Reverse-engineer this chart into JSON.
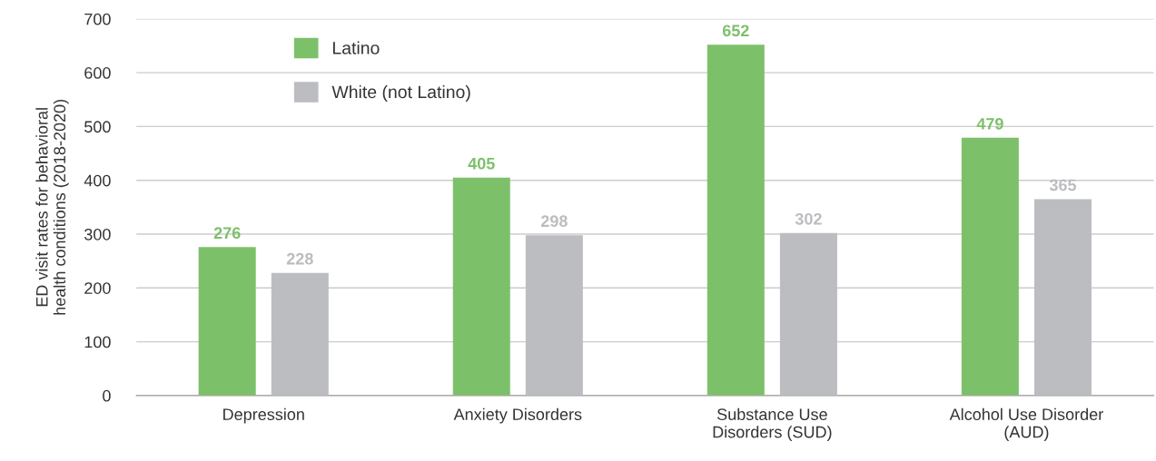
{
  "chart_data": {
    "type": "bar",
    "ylabel": "ED visit rates for behavioral\nhealth conditions (2018-2020)",
    "categories": [
      "Depression",
      "Anxiety Disorders",
      "Substance Use\nDisorders (SUD)",
      "Alcohol Use Disorder\n(AUD)"
    ],
    "series": [
      {
        "name": "Latino",
        "color": "#7dc06a",
        "values": [
          276,
          405,
          652,
          479
        ]
      },
      {
        "name": "White (not Latino)",
        "color": "#bcbdc0",
        "values": [
          228,
          298,
          302,
          365
        ]
      }
    ],
    "ylim": [
      0,
      700
    ],
    "yticks": [
      0,
      100,
      200,
      300,
      400,
      500,
      600,
      700
    ],
    "grid": "y",
    "legend": "top left",
    "data_labels": true
  }
}
